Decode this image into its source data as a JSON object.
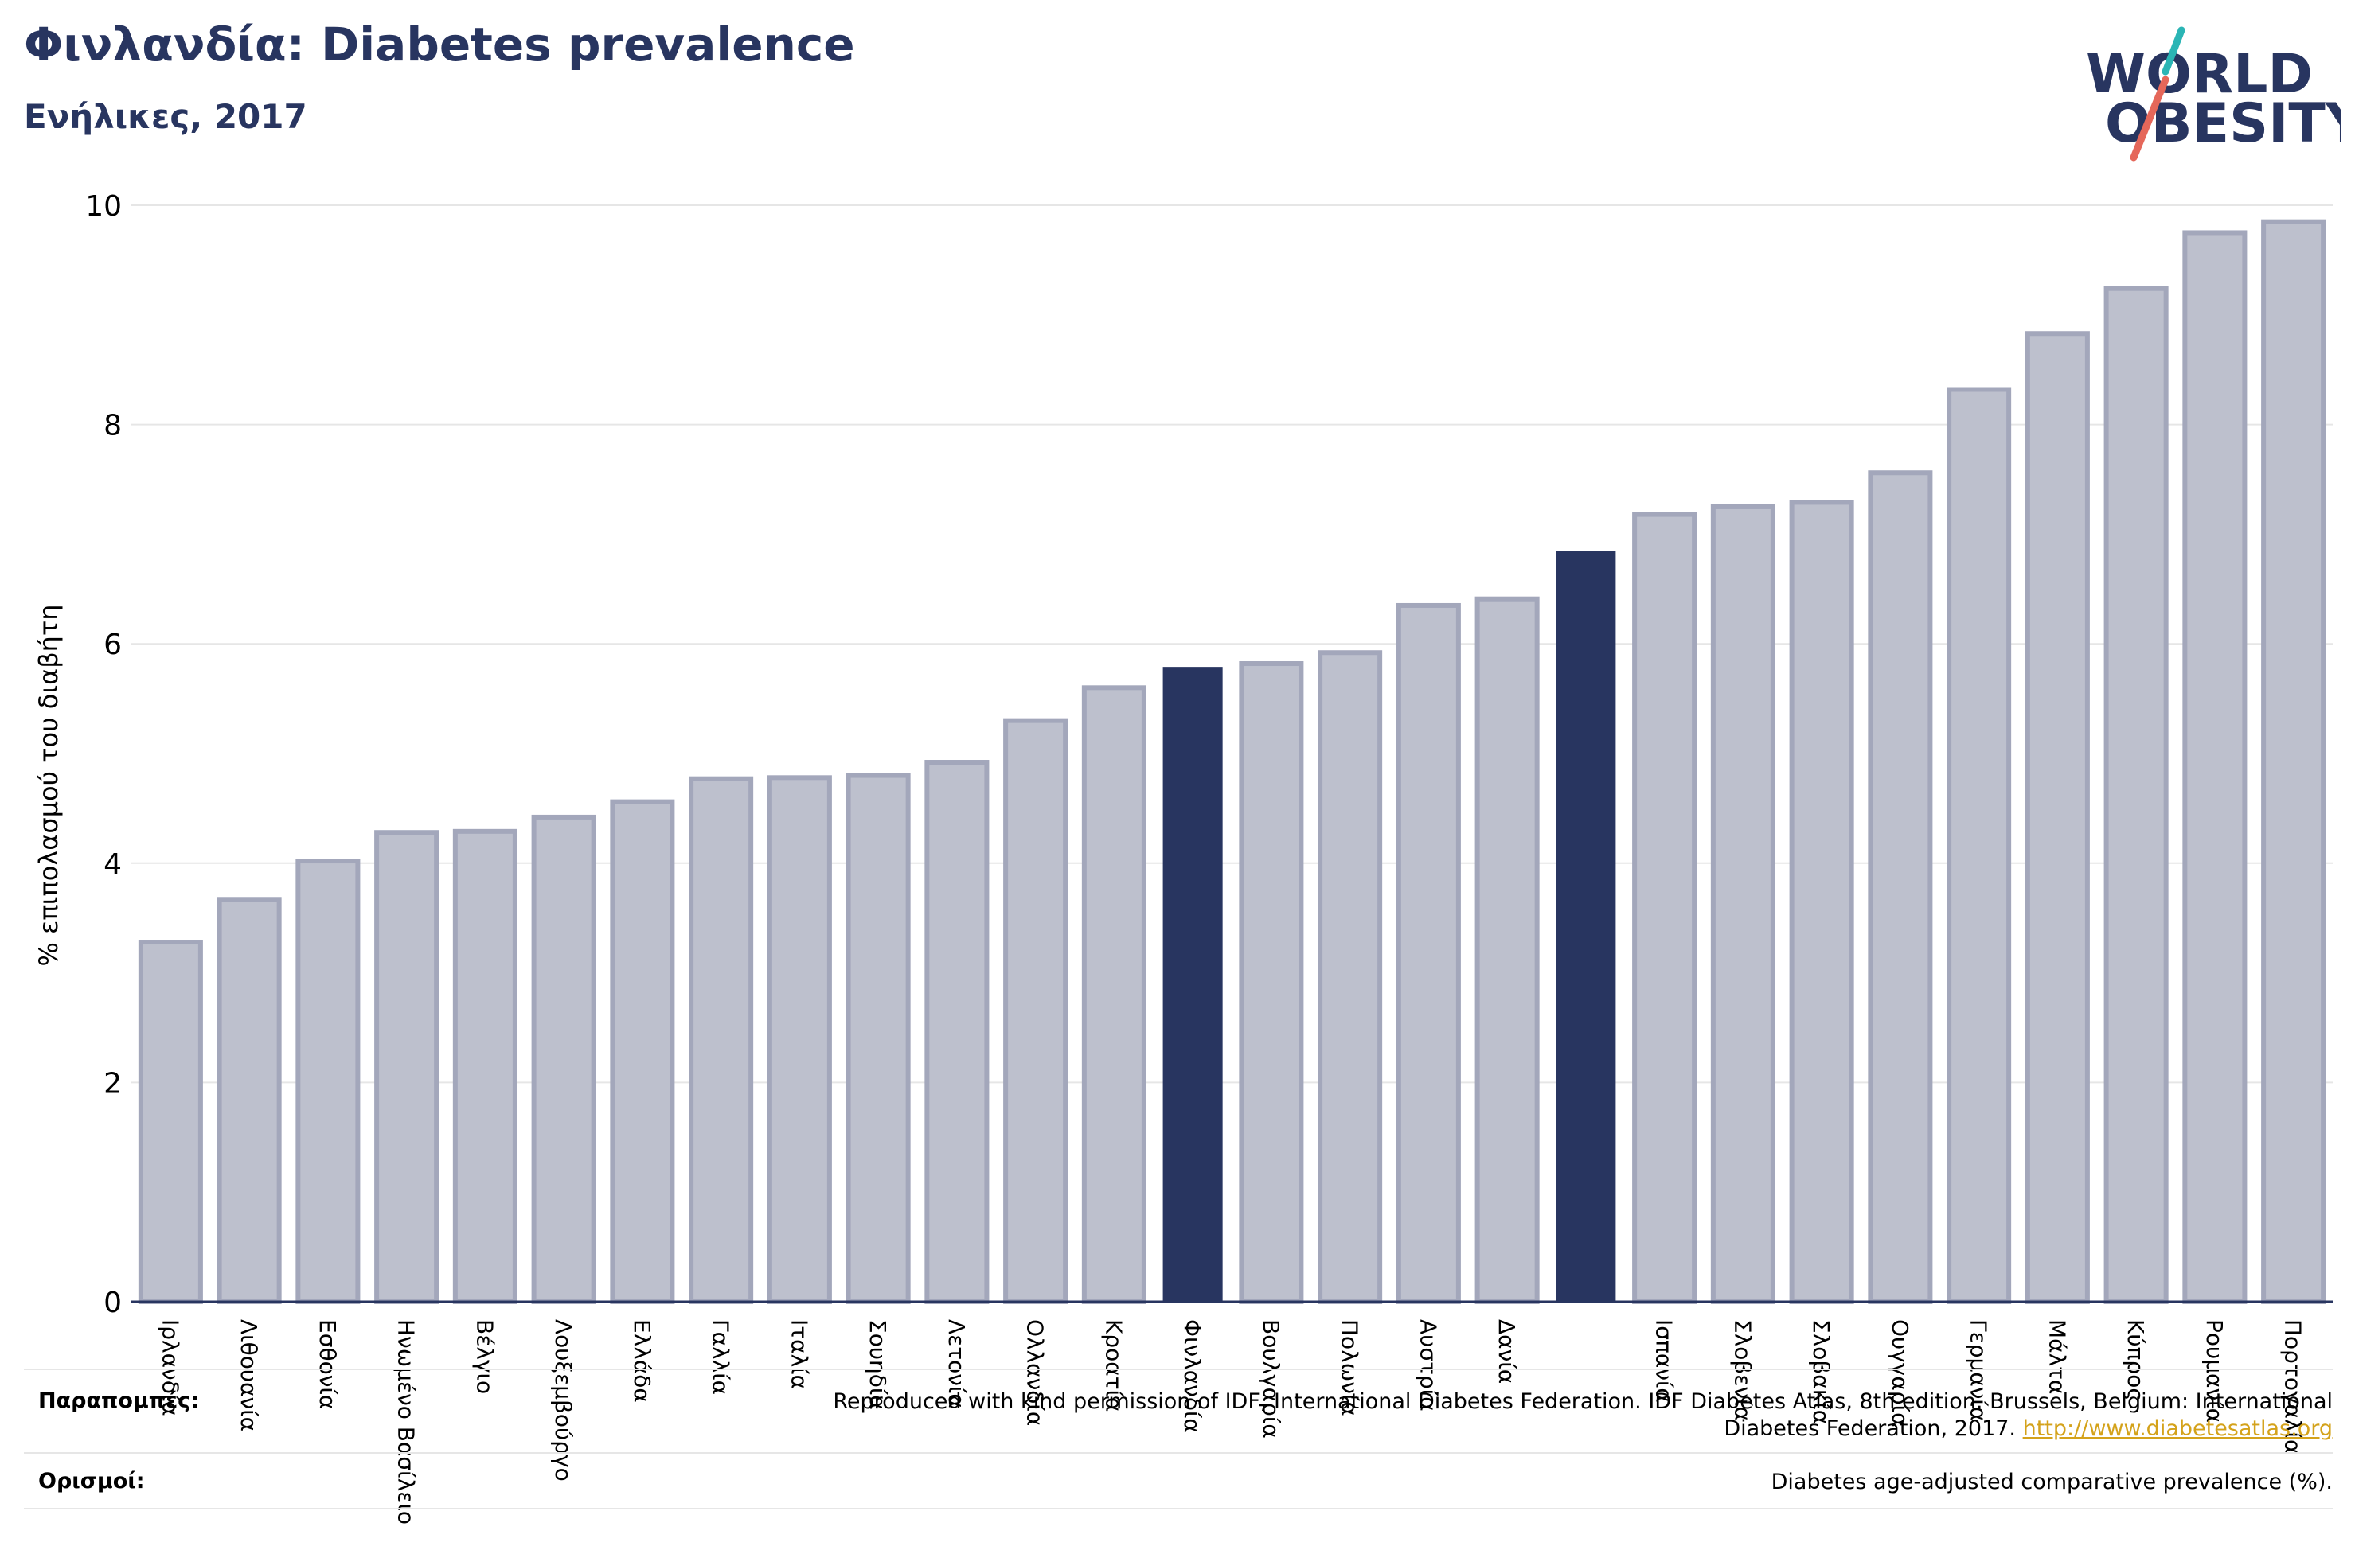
{
  "header": {
    "title": "Φινλανδία: Diabetes prevalence",
    "subtitle": "Ενήλικες, 2017"
  },
  "logo": {
    "line1": "WORLD",
    "line2": "OBESITY",
    "colors": {
      "text": "#283560",
      "slash_top": "#2bb5b5",
      "slash_bottom": "#e5675a"
    }
  },
  "footer": {
    "references_label": "Παραπομπές:",
    "references_text": "Reproduced with kind permission of IDF, International Diabetes Federation. IDF Diabetes Atlas, 8th edition. Brussels, Belgium: International",
    "references_text2": "Diabetes Federation, 2017.",
    "references_link": "http://www.diabetesatlas.org",
    "definitions_label": "Ορισμοί:",
    "definitions_text": "Diabetes age-adjusted comparative prevalence (%)."
  },
  "colors": {
    "bar": "#bdc0cd",
    "bar_border": "#a3a7bb",
    "highlight": "#283560",
    "grid": "#e6e6e6",
    "axis": "#283560"
  },
  "chart_data": {
    "type": "bar",
    "title": "Φινλανδία: Diabetes prevalence",
    "subtitle": "Ενήλικες, 2017",
    "ylabel": "% επιπολασμού του διαβήτη",
    "ylim": [
      0,
      10
    ],
    "yticks": [
      0,
      2,
      4,
      6,
      8,
      10
    ],
    "grid": true,
    "categories": [
      "Ιρλανδία",
      "Λιθουανία",
      "Εσθονία",
      "Ηνωμένο Βασίλειο",
      "Βέλγιο",
      "Λουξεμβούργο",
      "Ελλάδα",
      "Γαλλία",
      "Ιταλία",
      "Σουηδία",
      "Λετονία",
      "Ολλανδία",
      "Κροατία",
      "Φινλανδία",
      "Βουλγαρία",
      "Πολωνία",
      "Αυστρία",
      "Δανία",
      "",
      "Ισπανία",
      "Σλοβενία",
      "Σλοβακία",
      "Ουγγαρία",
      "Γερμανία",
      "Μάλτα",
      "Κύπρος",
      "Ρουμανία",
      "Πορτογαλία"
    ],
    "values": [
      3.28,
      3.67,
      4.02,
      4.28,
      4.29,
      4.42,
      4.56,
      4.77,
      4.78,
      4.8,
      4.92,
      5.3,
      5.6,
      5.79,
      5.82,
      5.92,
      6.35,
      6.41,
      6.85,
      7.18,
      7.25,
      7.29,
      7.56,
      8.32,
      8.83,
      9.24,
      9.75,
      9.85
    ],
    "highlighted": [
      13,
      18
    ]
  }
}
